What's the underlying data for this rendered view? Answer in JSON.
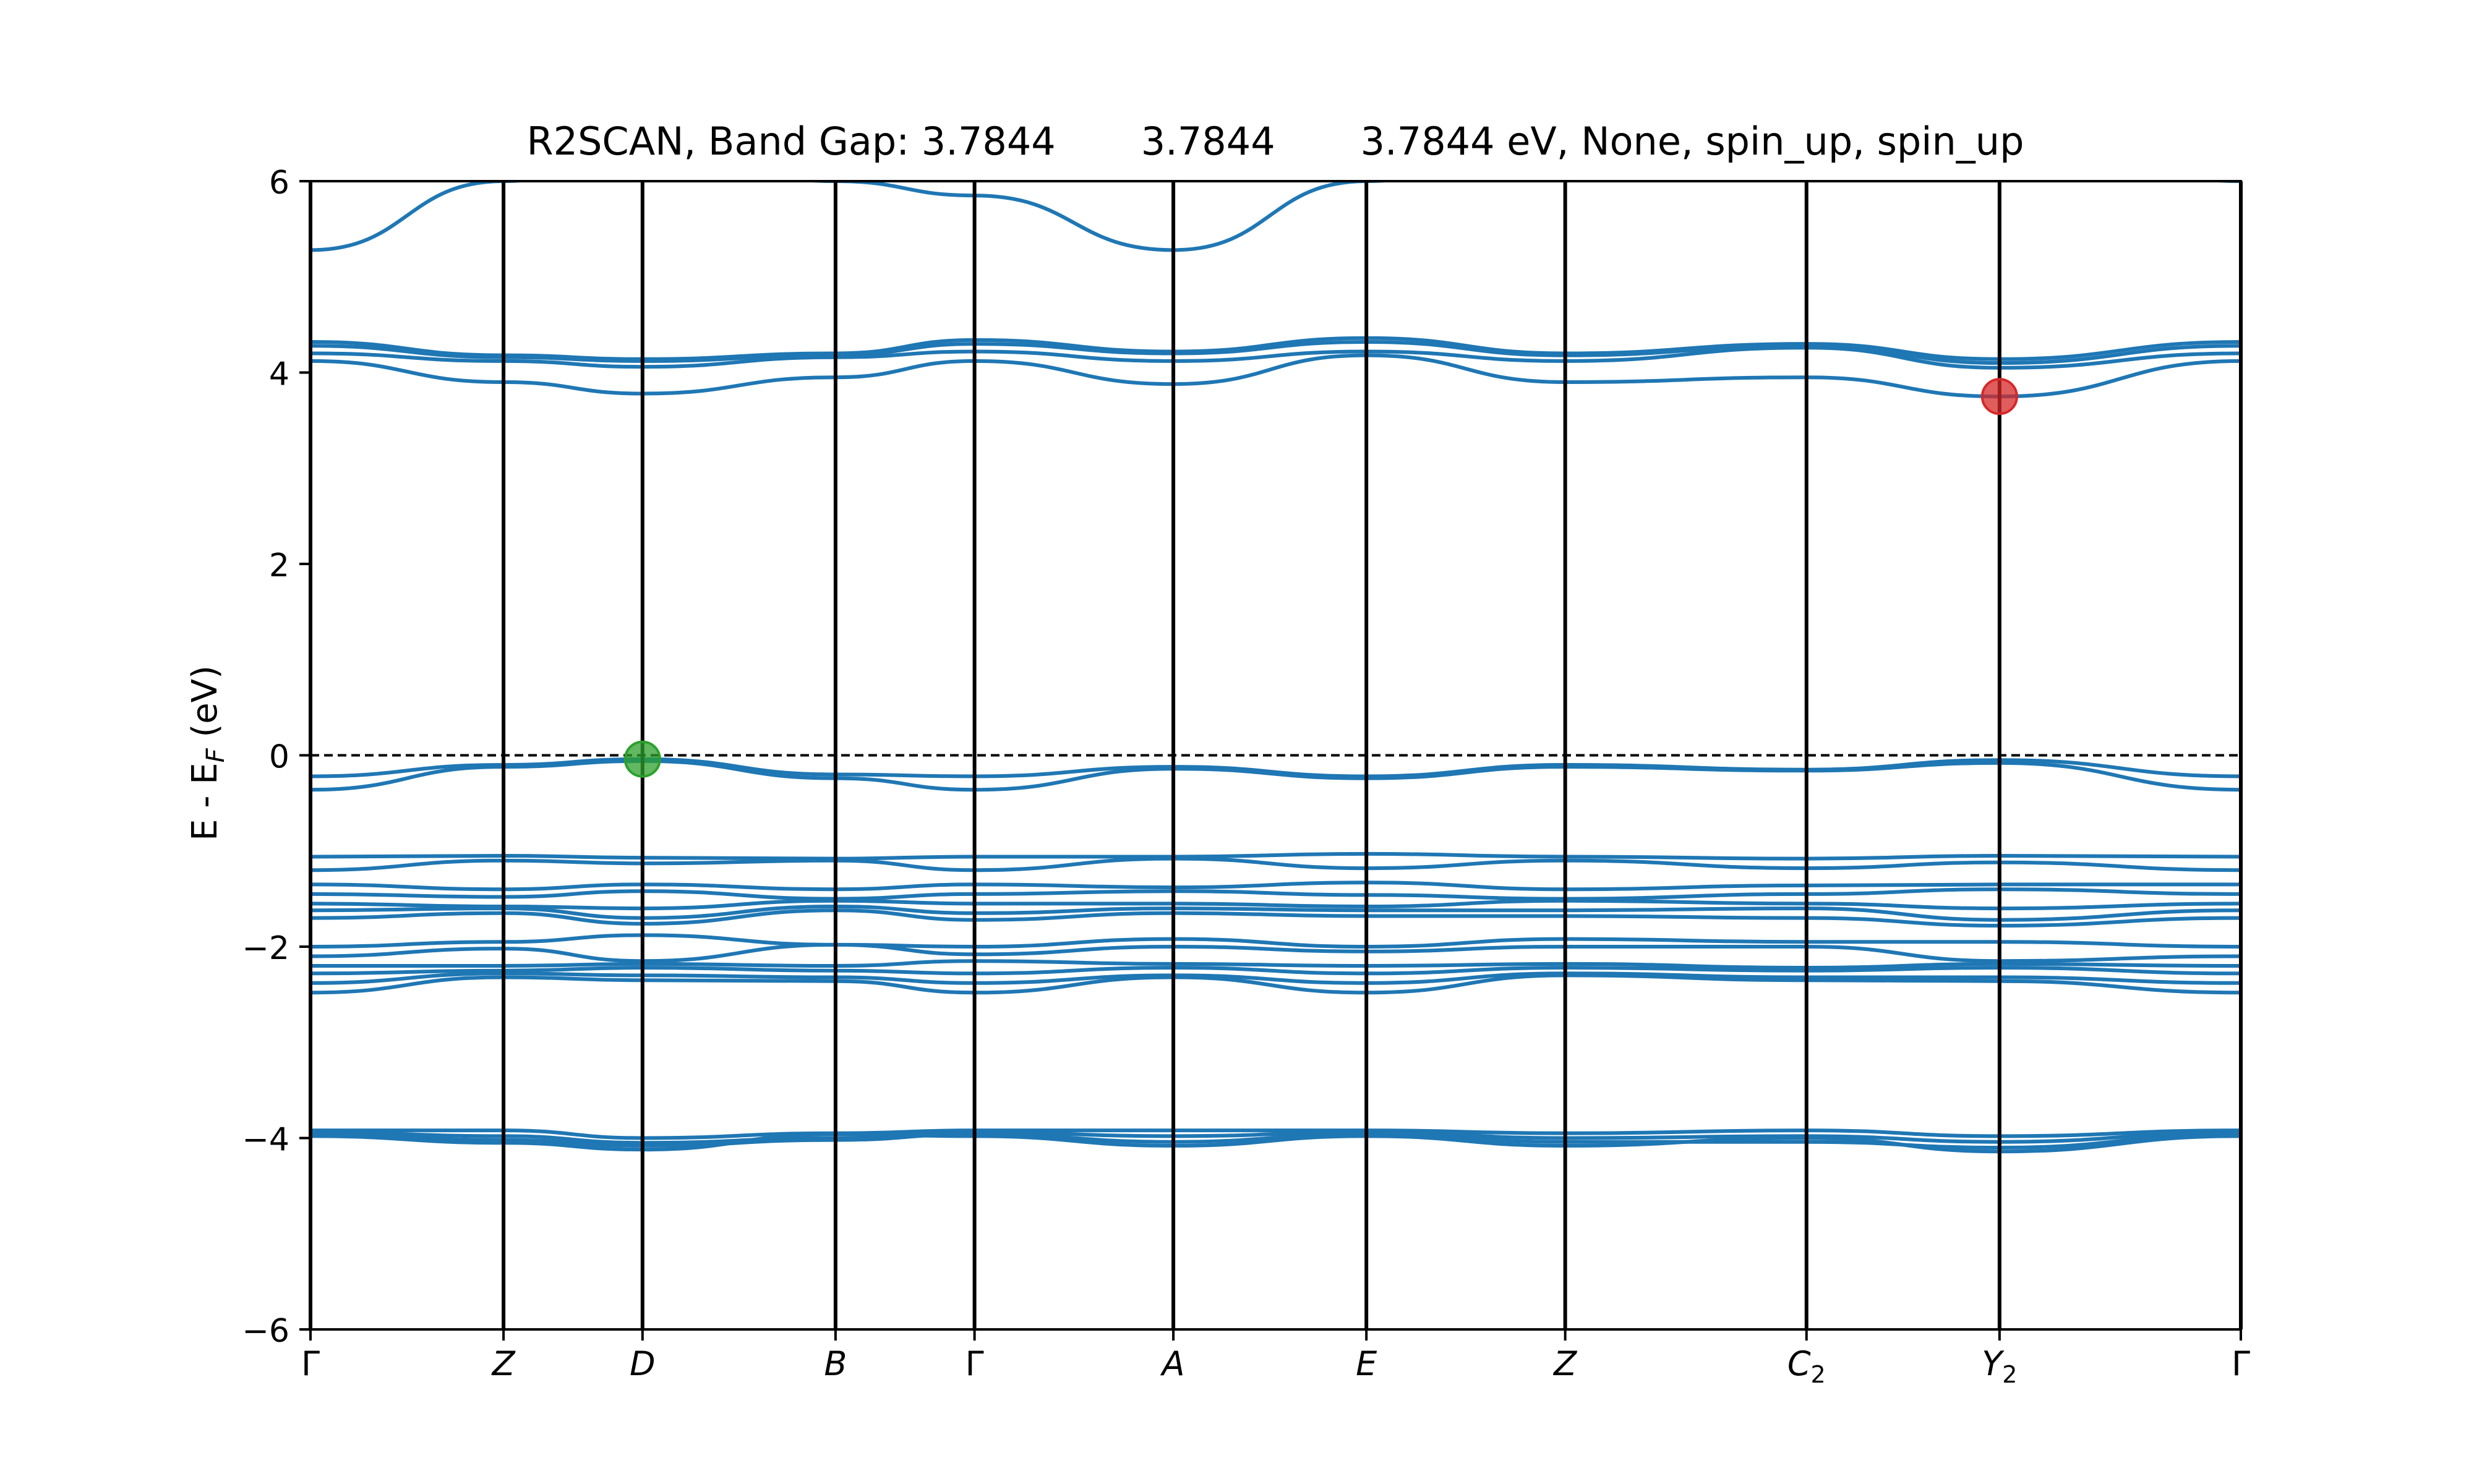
{
  "chart_data": {
    "type": "line",
    "title": "R2SCAN, Band Gap: 3.7844       3.7844       3.7844 eV, None, spin_up, spin_up",
    "xlabel": "",
    "ylabel": {
      "pre": "E - E",
      "sub": "F",
      "post": " (eV)"
    },
    "ylim": [
      -6,
      6
    ],
    "yticks": [
      -6,
      -4,
      -2,
      0,
      2,
      4,
      6
    ],
    "ytick_labels": [
      "−6",
      "−4",
      "−2",
      "0",
      "2",
      "4",
      "6"
    ],
    "xlim": [
      0,
      10.0
    ],
    "kpoints": [
      {
        "pos": 0.0,
        "label": "Γ",
        "sub": ""
      },
      {
        "pos": 1.0,
        "label": "Z",
        "sub": ""
      },
      {
        "pos": 1.72,
        "label": "D",
        "sub": ""
      },
      {
        "pos": 2.72,
        "label": "B",
        "sub": ""
      },
      {
        "pos": 3.44,
        "label": "Γ",
        "sub": ""
      },
      {
        "pos": 4.47,
        "label": "A",
        "sub": ""
      },
      {
        "pos": 5.47,
        "label": "E",
        "sub": ""
      },
      {
        "pos": 6.5,
        "label": "Z",
        "sub": ""
      },
      {
        "pos": 7.75,
        "label": "C",
        "sub": "2"
      },
      {
        "pos": 8.75,
        "label": "Y",
        "sub": "2"
      },
      {
        "pos": 10.0,
        "label": "Γ",
        "sub": ""
      }
    ],
    "fermi_level": 0,
    "series_color": "#1f77b4",
    "vbm_marker": {
      "x": 1.72,
      "y": -0.04,
      "color": "#2ca02c"
    },
    "cbm_marker": {
      "x": 8.75,
      "y": 3.75,
      "color": "#d62728"
    },
    "bands": [
      [
        5.28,
        6.0,
        6.3,
        6.0,
        5.85,
        5.28,
        6.0,
        6.5,
        6.6,
        6.5,
        6.0,
        5.28
      ],
      [
        4.32,
        4.18,
        4.14,
        4.2,
        4.34,
        4.22,
        4.36,
        4.2,
        4.3,
        4.14,
        4.32,
        4.32
      ],
      [
        4.28,
        4.16,
        4.12,
        4.18,
        4.3,
        4.2,
        4.32,
        4.18,
        4.28,
        4.1,
        4.28,
        4.28
      ],
      [
        4.2,
        4.12,
        4.06,
        4.16,
        4.22,
        4.12,
        4.22,
        4.12,
        4.26,
        4.05,
        4.2,
        4.2
      ],
      [
        4.12,
        3.9,
        3.78,
        3.95,
        4.12,
        3.88,
        4.18,
        3.9,
        3.95,
        3.75,
        4.12,
        4.12
      ],
      [
        -0.22,
        -0.1,
        -0.04,
        -0.2,
        -0.22,
        -0.12,
        -0.22,
        -0.1,
        -0.15,
        -0.05,
        -0.22,
        -0.22
      ],
      [
        -0.36,
        -0.12,
        -0.06,
        -0.24,
        -0.36,
        -0.14,
        -0.24,
        -0.12,
        -0.16,
        -0.08,
        -0.36,
        -0.36
      ],
      [
        -1.06,
        -1.05,
        -1.07,
        -1.08,
        -1.06,
        -1.06,
        -1.03,
        -1.06,
        -1.08,
        -1.05,
        -1.06,
        -1.06
      ],
      [
        -1.2,
        -1.1,
        -1.13,
        -1.1,
        -1.2,
        -1.08,
        -1.18,
        -1.1,
        -1.18,
        -1.12,
        -1.2,
        -1.2
      ],
      [
        -1.35,
        -1.4,
        -1.35,
        -1.4,
        -1.35,
        -1.38,
        -1.33,
        -1.4,
        -1.36,
        -1.35,
        -1.35,
        -1.35
      ],
      [
        -1.45,
        -1.48,
        -1.42,
        -1.5,
        -1.45,
        -1.42,
        -1.46,
        -1.5,
        -1.45,
        -1.4,
        -1.45,
        -1.45
      ],
      [
        -1.55,
        -1.58,
        -1.6,
        -1.52,
        -1.55,
        -1.55,
        -1.58,
        -1.52,
        -1.55,
        -1.6,
        -1.55,
        -1.55
      ],
      [
        -1.62,
        -1.6,
        -1.7,
        -1.58,
        -1.65,
        -1.6,
        -1.62,
        -1.62,
        -1.6,
        -1.72,
        -1.62,
        -1.62
      ],
      [
        -1.7,
        -1.65,
        -1.76,
        -1.62,
        -1.72,
        -1.65,
        -1.68,
        -1.68,
        -1.7,
        -1.78,
        -1.7,
        -1.7
      ],
      [
        -2.0,
        -1.95,
        -1.88,
        -1.98,
        -2.0,
        -1.92,
        -2.0,
        -1.92,
        -1.95,
        -1.95,
        -2.0,
        -2.0
      ],
      [
        -2.1,
        -2.02,
        -2.15,
        -1.98,
        -2.08,
        -2.0,
        -2.05,
        -2.0,
        -2.0,
        -2.15,
        -2.1,
        -2.1
      ],
      [
        -2.2,
        -2.2,
        -2.18,
        -2.2,
        -2.15,
        -2.18,
        -2.2,
        -2.18,
        -2.22,
        -2.18,
        -2.2,
        -2.2
      ],
      [
        -2.28,
        -2.25,
        -2.22,
        -2.25,
        -2.28,
        -2.22,
        -2.28,
        -2.22,
        -2.25,
        -2.22,
        -2.28,
        -2.28
      ],
      [
        -2.38,
        -2.28,
        -2.3,
        -2.32,
        -2.38,
        -2.3,
        -2.38,
        -2.28,
        -2.32,
        -2.32,
        -2.38,
        -2.38
      ],
      [
        -2.48,
        -2.32,
        -2.35,
        -2.36,
        -2.48,
        -2.32,
        -2.48,
        -2.3,
        -2.35,
        -2.36,
        -2.48,
        -2.48
      ],
      [
        -3.92,
        -3.92,
        -4.0,
        -3.95,
        -3.92,
        -3.92,
        -3.92,
        -3.95,
        -3.92,
        -3.98,
        -3.92,
        -3.92
      ],
      [
        -3.94,
        -3.98,
        -4.05,
        -4.0,
        -3.94,
        -3.98,
        -3.94,
        -4.0,
        -3.98,
        -4.04,
        -3.94,
        -3.94
      ],
      [
        -3.96,
        -4.02,
        -4.08,
        -4.02,
        -3.96,
        -4.04,
        -3.96,
        -4.04,
        -4.04,
        -4.1,
        -3.96,
        -3.96
      ],
      [
        -3.98,
        -4.05,
        -4.12,
        -3.96,
        -3.98,
        -4.08,
        -3.98,
        -4.08,
        -4.0,
        -4.14,
        -3.98,
        -3.98
      ]
    ]
  }
}
